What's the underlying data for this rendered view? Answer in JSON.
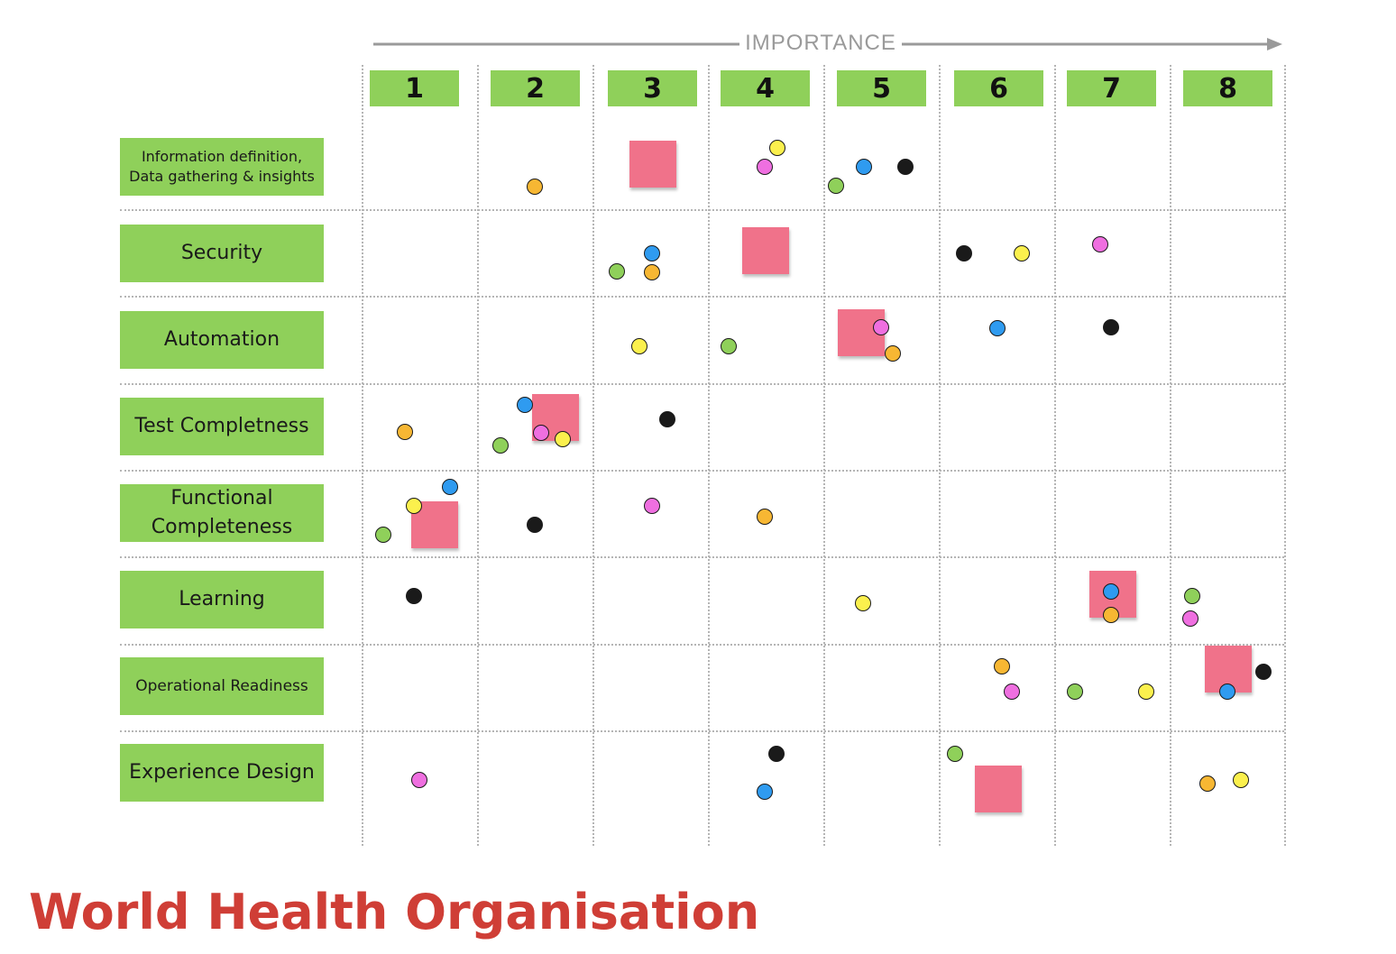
{
  "axis": {
    "label": "IMPORTANCE"
  },
  "columns": [
    "1",
    "2",
    "3",
    "4",
    "5",
    "6",
    "7",
    "8"
  ],
  "rows": [
    "Information definition,\nData gathering & insights",
    "Security",
    "Automation",
    "Test Completness",
    "Functional\nCompleteness",
    "Learning",
    "Operational Readiness",
    "Experience Design"
  ],
  "colors": {
    "header_green": "#8fd05a",
    "sticky": "#f0728a",
    "dot_orange": "#f7b733",
    "dot_yellow": "#fbf04d",
    "dot_pink": "#ef6fe0",
    "dot_blue": "#2f9bf0",
    "dot_black": "#1a1a1a",
    "dot_green": "#8fd05a",
    "title_red": "#cf3e36"
  },
  "stickies": [
    {
      "row": 1,
      "col": 3
    },
    {
      "row": 2,
      "col": 4
    },
    {
      "row": 3,
      "col": 5
    },
    {
      "row": 4,
      "col": 2
    },
    {
      "row": 5,
      "col": 1
    },
    {
      "row": 6,
      "col": 7
    },
    {
      "row": 7,
      "col": 8
    },
    {
      "row": 8,
      "col": 6
    }
  ],
  "votes": [
    {
      "row": 1,
      "col": 2,
      "color": "orange"
    },
    {
      "row": 1,
      "col": 4,
      "color": "yellow"
    },
    {
      "row": 1,
      "col": 4,
      "color": "pink"
    },
    {
      "row": 1,
      "col": 5,
      "color": "green"
    },
    {
      "row": 1,
      "col": 5,
      "color": "blue"
    },
    {
      "row": 1,
      "col": 5,
      "color": "black"
    },
    {
      "row": 2,
      "col": 3,
      "color": "green"
    },
    {
      "row": 2,
      "col": 3,
      "color": "blue"
    },
    {
      "row": 2,
      "col": 3,
      "color": "orange"
    },
    {
      "row": 2,
      "col": 6,
      "color": "black"
    },
    {
      "row": 2,
      "col": 6,
      "color": "yellow"
    },
    {
      "row": 2,
      "col": 7,
      "color": "pink"
    },
    {
      "row": 3,
      "col": 3,
      "color": "yellow"
    },
    {
      "row": 3,
      "col": 4,
      "color": "green"
    },
    {
      "row": 3,
      "col": 5,
      "color": "pink"
    },
    {
      "row": 3,
      "col": 5,
      "color": "orange"
    },
    {
      "row": 3,
      "col": 6,
      "color": "blue"
    },
    {
      "row": 3,
      "col": 7,
      "color": "black"
    },
    {
      "row": 4,
      "col": 1,
      "color": "orange"
    },
    {
      "row": 4,
      "col": 2,
      "color": "green"
    },
    {
      "row": 4,
      "col": 2,
      "color": "blue"
    },
    {
      "row": 4,
      "col": 2,
      "color": "pink"
    },
    {
      "row": 4,
      "col": 2,
      "color": "yellow"
    },
    {
      "row": 4,
      "col": 3,
      "color": "black"
    },
    {
      "row": 5,
      "col": 1,
      "color": "green"
    },
    {
      "row": 5,
      "col": 1,
      "color": "yellow"
    },
    {
      "row": 5,
      "col": 1,
      "color": "blue"
    },
    {
      "row": 5,
      "col": 2,
      "color": "black"
    },
    {
      "row": 5,
      "col": 3,
      "color": "pink"
    },
    {
      "row": 5,
      "col": 4,
      "color": "orange"
    },
    {
      "row": 6,
      "col": 1,
      "color": "black"
    },
    {
      "row": 6,
      "col": 5,
      "color": "yellow"
    },
    {
      "row": 6,
      "col": 7,
      "color": "blue"
    },
    {
      "row": 6,
      "col": 7,
      "color": "orange"
    },
    {
      "row": 6,
      "col": 8,
      "color": "green"
    },
    {
      "row": 6,
      "col": 8,
      "color": "pink"
    },
    {
      "row": 7,
      "col": 6,
      "color": "orange"
    },
    {
      "row": 7,
      "col": 6,
      "color": "pink"
    },
    {
      "row": 7,
      "col": 7,
      "color": "green"
    },
    {
      "row": 7,
      "col": 7,
      "color": "yellow"
    },
    {
      "row": 7,
      "col": 8,
      "color": "blue"
    },
    {
      "row": 7,
      "col": 8,
      "color": "black"
    },
    {
      "row": 8,
      "col": 1,
      "color": "pink"
    },
    {
      "row": 8,
      "col": 4,
      "color": "black"
    },
    {
      "row": 8,
      "col": 4,
      "color": "blue"
    },
    {
      "row": 8,
      "col": 6,
      "color": "green"
    },
    {
      "row": 8,
      "col": 8,
      "color": "orange"
    },
    {
      "row": 8,
      "col": 8,
      "color": "yellow"
    }
  ],
  "footer": {
    "organisation": "World Health Organisation"
  }
}
